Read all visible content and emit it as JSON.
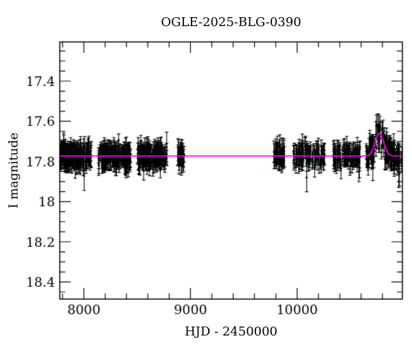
{
  "figure": {
    "title": "OGLE-2025-BLG-0390",
    "x_axis_label": "HJD - 2450000",
    "y_axis_label": "I magnitude",
    "background_color": "#ffffff"
  },
  "chart_data": {
    "type": "scatter",
    "title": "OGLE-2025-BLG-0390",
    "xlabel": "HJD - 2450000",
    "ylabel": "I magnitude",
    "x_range": [
      7774,
      10987
    ],
    "y_range": [
      17.205,
      18.485
    ],
    "y_axis_inverted": true,
    "grid": false,
    "x_ticks_major": [
      8000,
      9000,
      10000
    ],
    "x_tick_labels": [
      "8000",
      "9000",
      "10000"
    ],
    "x_tick_minor_step": 200,
    "y_ticks_major": [
      17.4,
      17.6,
      17.8,
      18.0,
      18.2,
      18.4
    ],
    "y_tick_labels": [
      "17.4",
      "17.6",
      "17.8",
      "18",
      "18.2",
      "18.4"
    ],
    "y_tick_minor_step": 0.05,
    "point_color": "#000000",
    "model": {
      "shape": "gaussian-bump",
      "baseline_mag": 17.773,
      "t0": 10772,
      "sigma_days": 40,
      "amplitude_mag": 0.113,
      "peak_mag": 17.66,
      "color": "#ff00ff"
    },
    "seasons": [
      {
        "start": 7778,
        "end": 8070,
        "n": 170
      },
      {
        "start": 8138,
        "end": 8438,
        "n": 170
      },
      {
        "start": 8502,
        "end": 8778,
        "n": 150
      },
      {
        "start": 8876,
        "end": 8940,
        "n": 28
      },
      {
        "start": 9778,
        "end": 9886,
        "n": 48
      },
      {
        "start": 9963,
        "end": 10258,
        "n": 100
      },
      {
        "start": 10338,
        "end": 10592,
        "n": 88
      },
      {
        "start": 10646,
        "end": 10985,
        "n": 135
      }
    ],
    "scatter": {
      "sigma_mag": 0.022,
      "outlier_fraction": 0.07,
      "outlier_scale": 2.3,
      "error_bar_mag_min": 0.028,
      "error_bar_mag_max": 0.055,
      "seed": 42
    }
  }
}
